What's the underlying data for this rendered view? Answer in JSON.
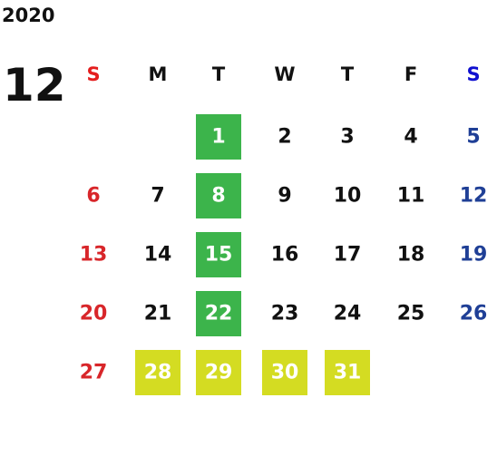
{
  "calendar": {
    "year": "2020",
    "month": "12",
    "weekdays": [
      "S",
      "M",
      "T",
      "W",
      "T",
      "F",
      "S"
    ],
    "header_colors": [
      "#e41e1e",
      "#111111",
      "#111111",
      "#111111",
      "#111111",
      "#111111",
      "#1010d0"
    ],
    "day_colors": [
      "#d8262a",
      "#111111",
      "#111111",
      "#111111",
      "#111111",
      "#111111",
      "#1f3f96"
    ],
    "weeks": [
      [
        null,
        null,
        {
          "day": 1,
          "fill": "#3cb44b"
        },
        {
          "day": 2
        },
        {
          "day": 3
        },
        {
          "day": 4
        },
        {
          "day": 5
        }
      ],
      [
        {
          "day": 6
        },
        {
          "day": 7
        },
        {
          "day": 8,
          "fill": "#3cb44b"
        },
        {
          "day": 9
        },
        {
          "day": 10
        },
        {
          "day": 11
        },
        {
          "day": 12
        }
      ],
      [
        {
          "day": 13
        },
        {
          "day": 14
        },
        {
          "day": 15,
          "fill": "#3cb44b"
        },
        {
          "day": 16
        },
        {
          "day": 17
        },
        {
          "day": 18
        },
        {
          "day": 19
        }
      ],
      [
        {
          "day": 20
        },
        {
          "day": 21
        },
        {
          "day": 22,
          "fill": "#3cb44b"
        },
        {
          "day": 23
        },
        {
          "day": 24
        },
        {
          "day": 25
        },
        {
          "day": 26
        }
      ],
      [
        {
          "day": 27
        },
        {
          "day": 28,
          "fill": "#d4dc22"
        },
        {
          "day": 29,
          "fill": "#d4dc22"
        },
        {
          "day": 30,
          "fill": "#d4dc22"
        },
        {
          "day": 31,
          "fill": "#d4dc22"
        },
        null,
        null
      ]
    ]
  }
}
